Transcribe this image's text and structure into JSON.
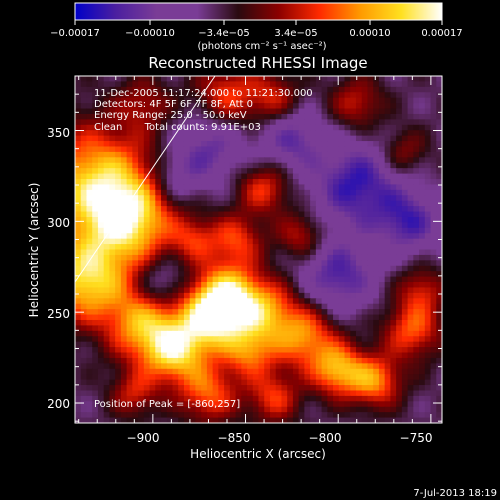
{
  "chart_data": {
    "type": "heatmap",
    "title": "Reconstructed RHESSI Image",
    "xlabel": "Heliocentric X (arcsec)",
    "ylabel": "Heliocentric Y (arcsec)",
    "xlim": [
      -942,
      -744
    ],
    "ylim": [
      189,
      380
    ],
    "x_ticks": [
      {
        "value": -900,
        "label": "−900"
      },
      {
        "value": -850,
        "label": "−850"
      },
      {
        "value": -800,
        "label": "−800"
      },
      {
        "value": -750,
        "label": "−750"
      }
    ],
    "y_ticks": [
      {
        "value": 200,
        "label": "200"
      },
      {
        "value": 250,
        "label": "250"
      },
      {
        "value": 300,
        "label": "300"
      },
      {
        "value": 350,
        "label": "350"
      }
    ],
    "colorbar": {
      "range": [
        -0.00017,
        0.00017
      ],
      "tick_labels": [
        "−0.00017",
        "−0.00010",
        "−3.4e−05",
        "3.4e−05",
        "0.00010",
        "0.00017"
      ],
      "unit": "(photons cm⁻² s⁻¹ asec⁻²)",
      "colors": [
        "#0000c8",
        "#4b1fa0",
        "#7a3c96",
        "#7a3c96",
        "#2a0a10",
        "#8c0000",
        "#ff2a00",
        "#ff9a00",
        "#ffe020",
        "#ffffff"
      ]
    },
    "annotations": [
      "11-Dec-2005 11:17:24.000 to 11:21:30.000",
      "Detectors: 4F 5F 6F 7F 8F, Att 0",
      "Energy Range: 25.0 - 50.0 keV",
      "Clean       Total counts: 9.91E+03"
    ],
    "peak_label": "Position of Peak = [-860,257]",
    "peak": {
      "x": -860,
      "y": 257
    },
    "sources": [
      {
        "x": -930,
        "y": 320,
        "amp": 1.1,
        "s": 22
      },
      {
        "x": -912,
        "y": 300,
        "amp": 0.9,
        "s": 16
      },
      {
        "x": -936,
        "y": 268,
        "amp": 1.1,
        "s": 16
      },
      {
        "x": -905,
        "y": 243,
        "amp": 0.9,
        "s": 14
      },
      {
        "x": -888,
        "y": 228,
        "amp": 1.0,
        "s": 12
      },
      {
        "x": -860,
        "y": 257,
        "amp": 1.3,
        "s": 13
      },
      {
        "x": -870,
        "y": 245,
        "amp": 0.8,
        "s": 12
      },
      {
        "x": -838,
        "y": 250,
        "amp": 0.7,
        "s": 12
      },
      {
        "x": -848,
        "y": 228,
        "amp": 0.7,
        "s": 10
      },
      {
        "x": -818,
        "y": 236,
        "amp": 0.8,
        "s": 12
      },
      {
        "x": -800,
        "y": 218,
        "amp": 0.9,
        "s": 10
      },
      {
        "x": -780,
        "y": 212,
        "amp": 0.8,
        "s": 10
      },
      {
        "x": -760,
        "y": 240,
        "amp": 0.7,
        "s": 11
      },
      {
        "x": -755,
        "y": 262,
        "amp": 0.5,
        "s": 9
      },
      {
        "x": -870,
        "y": 205,
        "amp": 0.7,
        "s": 11
      },
      {
        "x": -835,
        "y": 203,
        "amp": 0.6,
        "s": 10
      },
      {
        "x": -910,
        "y": 205,
        "amp": 0.5,
        "s": 9
      },
      {
        "x": -855,
        "y": 290,
        "amp": 0.6,
        "s": 10
      },
      {
        "x": -878,
        "y": 290,
        "amp": 0.5,
        "s": 9
      },
      {
        "x": -820,
        "y": 292,
        "amp": 0.5,
        "s": 9
      },
      {
        "x": -840,
        "y": 318,
        "amp": 0.6,
        "s": 10
      },
      {
        "x": -860,
        "y": 370,
        "amp": 0.6,
        "s": 12
      },
      {
        "x": -835,
        "y": 368,
        "amp": 0.5,
        "s": 10
      },
      {
        "x": -905,
        "y": 365,
        "amp": 0.4,
        "s": 10
      },
      {
        "x": -790,
        "y": 365,
        "amp": 0.5,
        "s": 10
      },
      {
        "x": -765,
        "y": 338,
        "amp": 0.4,
        "s": 9
      },
      {
        "x": -800,
        "y": 270,
        "amp": -0.6,
        "s": 14
      },
      {
        "x": -790,
        "y": 320,
        "amp": -0.7,
        "s": 16
      },
      {
        "x": -870,
        "y": 340,
        "amp": -0.5,
        "s": 13
      },
      {
        "x": -895,
        "y": 265,
        "amp": -0.4,
        "s": 10
      },
      {
        "x": -762,
        "y": 300,
        "amp": -0.6,
        "s": 12
      },
      {
        "x": -825,
        "y": 345,
        "amp": -0.5,
        "s": 12
      },
      {
        "x": -888,
        "y": 323,
        "amp": -0.4,
        "s": 10
      }
    ]
  },
  "timestamp": "7-Jul-2013 18:19"
}
